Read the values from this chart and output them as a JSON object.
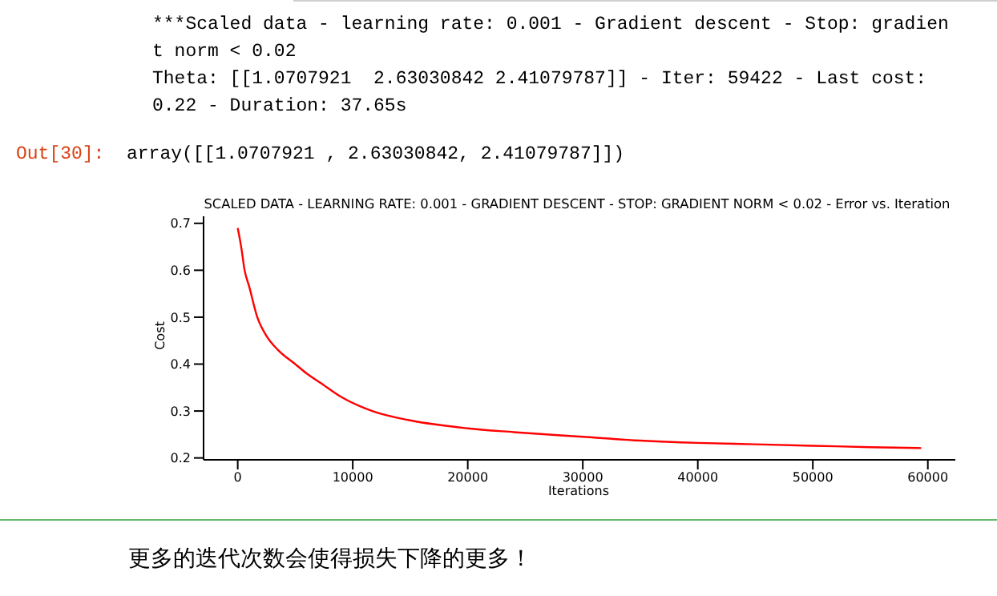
{
  "chart_data": {
    "type": "line",
    "title": "SCALED DATA - LEARNING RATE: 0.001 - GRADIENT DESCENT - STOP: GRADIENT NORM < 0.02 - Error vs. Iteration",
    "xlabel": "Iterations",
    "ylabel": "Cost",
    "annotations": [
      "***Scaled data - learning rate: 0.001 - Gradient descent - Stop: gradien",
      "t norm < 0.02",
      "Theta: [[1.0707921  2.63030842 2.41079787]] - Iter: 59422 - Last cost:",
      "0.22 - Duration: 37.65s",
      "Out[30]:",
      "array([[1.0707921 , 2.63030842, 2.41079787]])",
      "更多的迭代次数会使得损失下降的更多！"
    ],
    "x": [
      0,
      300,
      600,
      1000,
      1700,
      2500,
      3500,
      5000,
      6000,
      7200,
      9000,
      11700,
      15000,
      20000,
      24000,
      30000,
      35000,
      40000,
      45000,
      50000,
      55000,
      59422
    ],
    "values": [
      0.69,
      0.65,
      0.6,
      0.565,
      0.5,
      0.46,
      0.43,
      0.4,
      0.38,
      0.36,
      0.33,
      0.3,
      0.28,
      0.263,
      0.255,
      0.245,
      0.237,
      0.232,
      0.229,
      0.226,
      0.223,
      0.221
    ],
    "color": "#ff0000",
    "xlim": [
      -2970,
      62390
    ],
    "ylim": [
      0.196,
      0.715
    ],
    "xticks": [
      0,
      10000,
      20000,
      30000,
      40000,
      50000,
      60000
    ],
    "yticks": [
      0.2,
      0.3,
      0.4,
      0.5,
      0.6,
      0.7
    ]
  }
}
